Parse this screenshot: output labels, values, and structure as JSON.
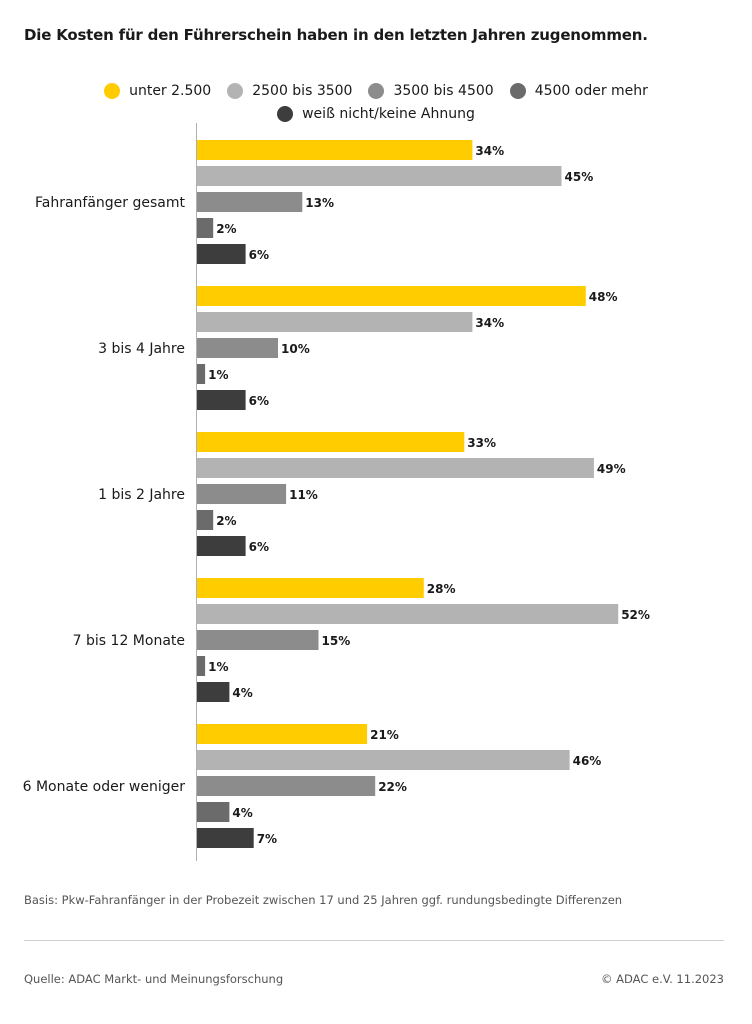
{
  "title": "Die Kosten für den Führerschein haben in den letzten Jahren zugenommen.",
  "legend": [
    {
      "label": "unter 2.500",
      "color": "#ffcc00"
    },
    {
      "label": "2500 bis 3500",
      "color": "#b3b3b3"
    },
    {
      "label": "3500 bis 4500",
      "color": "#8c8c8c"
    },
    {
      "label": "4500 oder mehr",
      "color": "#6b6b6b"
    },
    {
      "label": "weiß nicht/keine Ahnung",
      "color": "#3d3d3d"
    }
  ],
  "chart_data": {
    "type": "bar",
    "orientation": "horizontal",
    "categories": [
      "Fahranfänger gesamt",
      "3 bis 4 Jahre",
      "1 bis 2 Jahre",
      "7 bis 12 Monate",
      "6 Monate oder weniger"
    ],
    "series": [
      {
        "name": "unter 2.500",
        "color": "#ffcc00",
        "values": [
          34,
          48,
          33,
          28,
          21
        ]
      },
      {
        "name": "2500 bis 3500",
        "color": "#b3b3b3",
        "values": [
          45,
          34,
          49,
          52,
          46
        ]
      },
      {
        "name": "3500 bis 4500",
        "color": "#8c8c8c",
        "values": [
          13,
          10,
          11,
          15,
          22
        ]
      },
      {
        "name": "4500 oder mehr",
        "color": "#6b6b6b",
        "values": [
          2,
          1,
          2,
          1,
          4
        ]
      },
      {
        "name": "weiß nicht/keine Ahnung",
        "color": "#3d3d3d",
        "values": [
          6,
          6,
          6,
          4,
          7
        ]
      }
    ],
    "value_suffix": "%",
    "xlim": [
      0,
      60
    ],
    "grid": false,
    "legend_position": "top-center"
  },
  "basis": "Basis: Pkw-Fahranfänger in der Probezeit zwischen 17 und 25 Jahren ggf. rundungsbedingte Differenzen",
  "footer": {
    "source": "Quelle: ADAC Markt- und Meinungsforschung",
    "copyright": "© ADAC e.V. 11.2023"
  }
}
